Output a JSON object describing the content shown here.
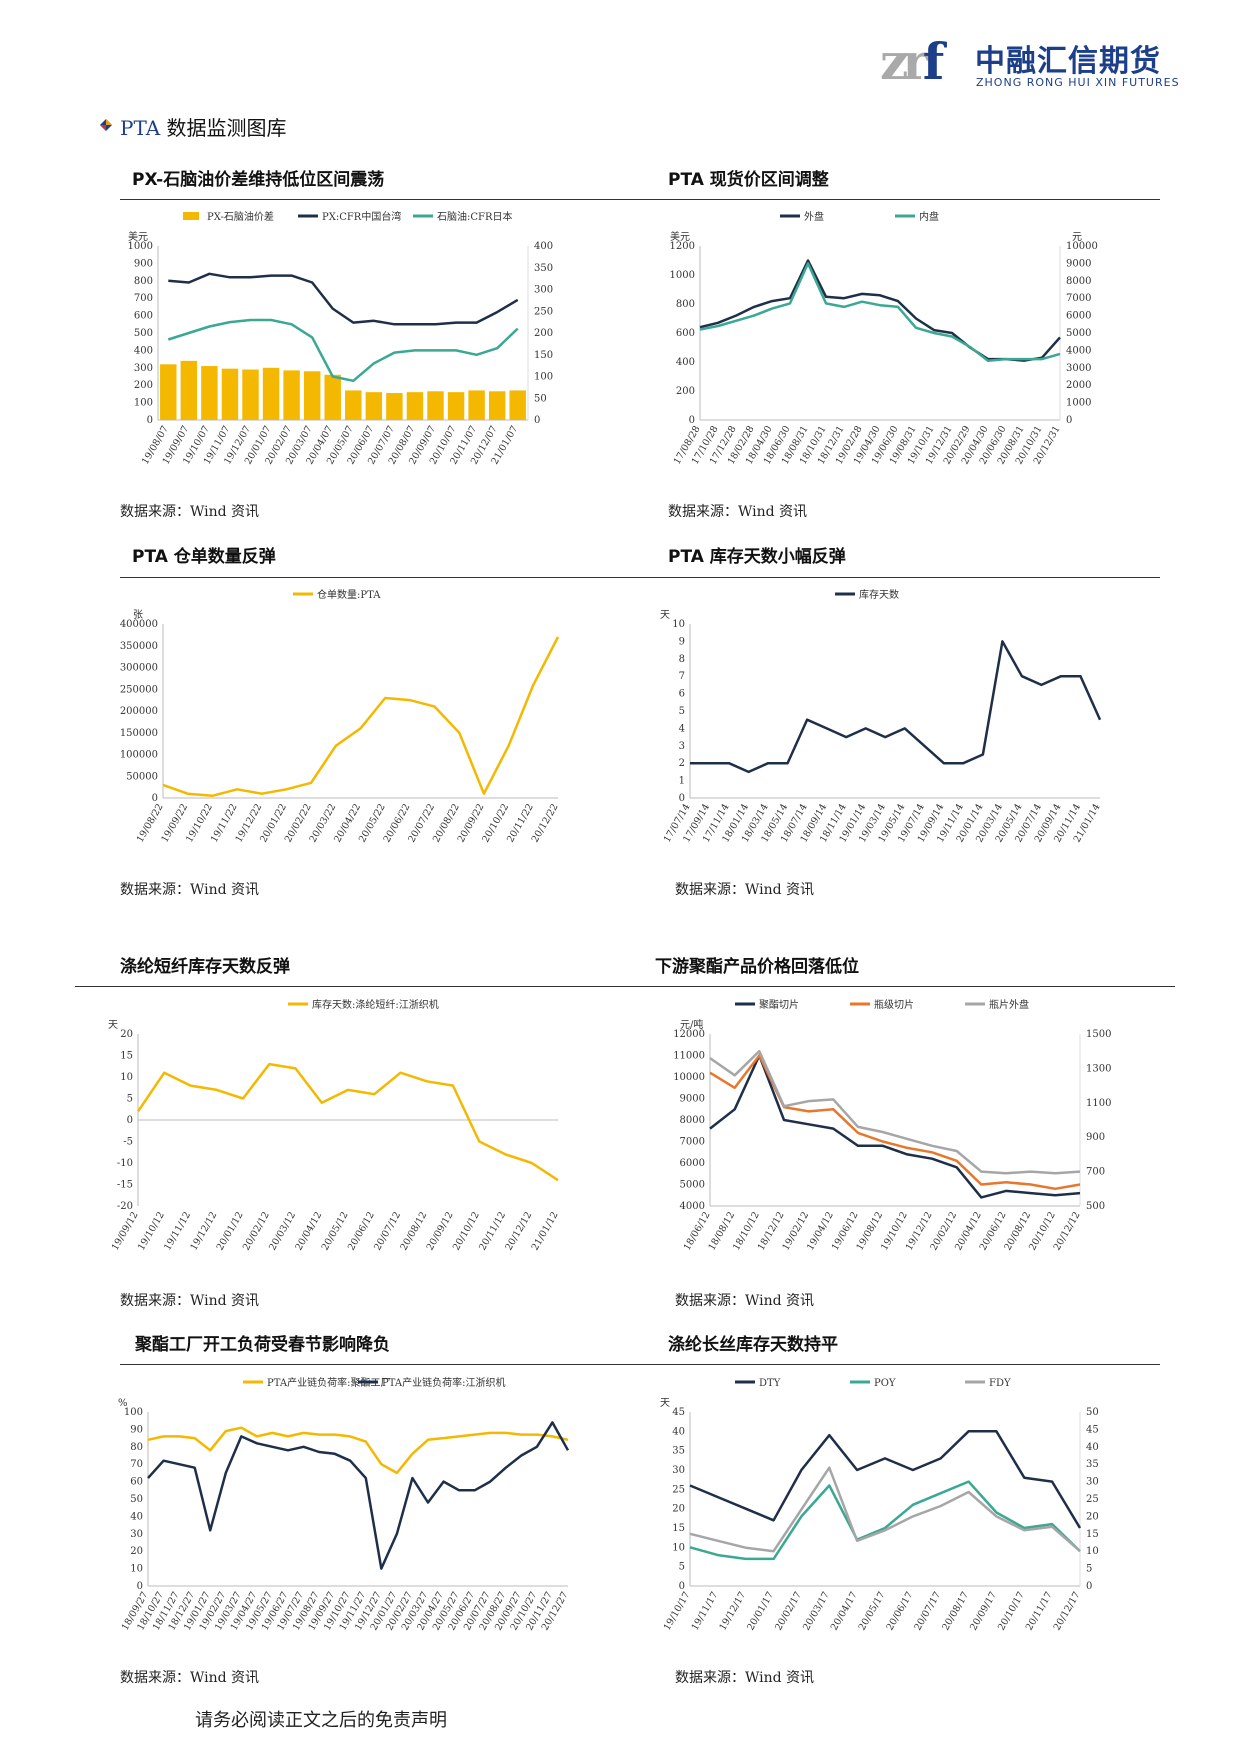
{
  "header": {
    "logo_mark": "zrf",
    "logo_cn": "中融汇信期货",
    "logo_en": "ZHONG RONG HUI XIN FUTURES"
  },
  "section": {
    "prefix": "PTA",
    "title": " 数据监测图库"
  },
  "footer": "请务必阅读正文之后的免责声明",
  "charts": [
    {
      "title": "PX-石脑油价差维持低位区间震荡",
      "source": "数据来源：Wind 资讯"
    },
    {
      "title": "PTA 现货价区间调整",
      "source": "数据来源：Wind 资讯"
    },
    {
      "title": "PTA 仓单数量反弹",
      "source": "数据来源：Wind 资讯"
    },
    {
      "title": "PTA 库存天数小幅反弹",
      "source": "数据来源：Wind 资讯"
    },
    {
      "title": "涤纶短纤库存天数反弹",
      "source": "数据来源：Wind 资讯"
    },
    {
      "title": "下游聚酯产品价格回落低位",
      "source": "数据来源：Wind 资讯"
    },
    {
      "title": "聚酯工厂开工负荷受春节影响降负",
      "source": "数据来源：Wind 资讯"
    },
    {
      "title": "涤纶长丝库存天数持平",
      "source": "数据来源：Wind 资讯"
    }
  ],
  "chart_data": [
    {
      "type": "bar+line",
      "unit_left": "美元",
      "ylim_left": [
        0,
        1000
      ],
      "yticks_left": [
        0,
        100,
        200,
        300,
        400,
        500,
        600,
        700,
        800,
        900,
        1000
      ],
      "ylim_right": [
        0,
        400
      ],
      "yticks_right": [
        0,
        50,
        100,
        150,
        200,
        250,
        300,
        350,
        400
      ],
      "categories": [
        "19/08/07",
        "19/09/07",
        "19/10/07",
        "19/11/07",
        "19/12/07",
        "20/01/07",
        "20/02/07",
        "20/03/07",
        "20/04/07",
        "20/05/07",
        "20/06/07",
        "20/07/07",
        "20/08/07",
        "20/09/07",
        "20/10/07",
        "20/11/07",
        "20/12/07",
        "21/01/07"
      ],
      "series": [
        {
          "name": "PX-石脑油价差",
          "axis": "left",
          "kind": "bar",
          "color": "#f5b800",
          "values": [
            320,
            340,
            310,
            295,
            290,
            300,
            285,
            280,
            260,
            170,
            160,
            155,
            160,
            165,
            160,
            170,
            165,
            170
          ]
        },
        {
          "name": "PX:CFR中国台湾",
          "axis": "left",
          "kind": "line",
          "color": "#1f2f4a",
          "values": [
            800,
            790,
            840,
            820,
            820,
            830,
            830,
            790,
            640,
            560,
            570,
            550,
            550,
            550,
            560,
            560,
            620,
            690
          ]
        },
        {
          "name": "石脑油:CFR日本",
          "axis": "right",
          "kind": "line",
          "color": "#3aa893",
          "values": [
            185,
            200,
            215,
            225,
            230,
            230,
            220,
            190,
            100,
            90,
            130,
            155,
            160,
            160,
            160,
            150,
            165,
            210
          ]
        }
      ]
    },
    {
      "type": "line",
      "unit_left": "美元",
      "unit_right": "元",
      "ylim_left": [
        0,
        1200
      ],
      "yticks_left": [
        0,
        200,
        400,
        600,
        800,
        1000,
        1200
      ],
      "ylim_right": [
        0,
        10000
      ],
      "yticks_right": [
        0,
        1000,
        2000,
        3000,
        4000,
        5000,
        6000,
        7000,
        8000,
        9000,
        10000
      ],
      "categories": [
        "17/08/28",
        "17/10/28",
        "17/12/28",
        "18/02/28",
        "18/04/30",
        "18/06/30",
        "18/08/31",
        "18/10/31",
        "18/12/31",
        "19/02/28",
        "19/04/30",
        "19/06/30",
        "19/08/31",
        "19/10/31",
        "19/12/31",
        "20/02/29",
        "20/04/30",
        "20/06/30",
        "20/08/31",
        "20/10/31",
        "20/12/31"
      ],
      "series": [
        {
          "name": "外盘",
          "axis": "left",
          "color": "#1f2f4a",
          "values": [
            640,
            670,
            720,
            780,
            820,
            840,
            1100,
            850,
            840,
            870,
            860,
            820,
            700,
            620,
            600,
            500,
            420,
            420,
            410,
            430,
            570
          ]
        },
        {
          "name": "内盘",
          "axis": "right",
          "color": "#3aa893",
          "values": [
            5200,
            5400,
            5700,
            6000,
            6400,
            6700,
            9000,
            6700,
            6500,
            6800,
            6600,
            6500,
            5300,
            5000,
            4800,
            4200,
            3400,
            3500,
            3500,
            3500,
            3800
          ]
        }
      ]
    },
    {
      "type": "line",
      "unit_left": "张",
      "ylim_left": [
        0,
        400000
      ],
      "yticks_left": [
        0,
        50000,
        100000,
        150000,
        200000,
        250000,
        300000,
        350000,
        400000
      ],
      "categories": [
        "19/08/22",
        "19/09/22",
        "19/10/22",
        "19/11/22",
        "19/12/22",
        "20/01/22",
        "20/02/22",
        "20/03/22",
        "20/04/22",
        "20/05/22",
        "20/06/22",
        "20/07/22",
        "20/08/22",
        "20/09/22",
        "20/10/22",
        "20/11/22",
        "20/12/22"
      ],
      "series": [
        {
          "name": "仓单数量:PTA",
          "color": "#f5b800",
          "values": [
            30000,
            10000,
            5000,
            20000,
            10000,
            20000,
            35000,
            120000,
            160000,
            230000,
            225000,
            210000,
            150000,
            10000,
            120000,
            260000,
            370000
          ]
        }
      ]
    },
    {
      "type": "line",
      "unit_left": "天",
      "ylim_left": [
        0,
        10
      ],
      "yticks_left": [
        0,
        1,
        2,
        3,
        4,
        5,
        6,
        7,
        8,
        9,
        10
      ],
      "categories": [
        "17/07/14",
        "17/09/14",
        "17/11/14",
        "18/01/14",
        "18/03/14",
        "18/05/14",
        "18/07/14",
        "18/09/14",
        "18/11/14",
        "19/01/14",
        "19/03/14",
        "19/05/14",
        "19/07/14",
        "19/09/14",
        "19/11/14",
        "20/01/14",
        "20/03/14",
        "20/05/14",
        "20/07/14",
        "20/09/14",
        "20/11/14",
        "21/01/14"
      ],
      "series": [
        {
          "name": "库存天数",
          "color": "#1f2f4a",
          "values": [
            2,
            2,
            2,
            1.5,
            2,
            2,
            4.5,
            4,
            3.5,
            4,
            3.5,
            4,
            3,
            2,
            2,
            2.5,
            9,
            7,
            6.5,
            7,
            7,
            4.5
          ]
        }
      ]
    },
    {
      "type": "line",
      "unit_left": "天",
      "ylim_left": [
        -20,
        20
      ],
      "yticks_left": [
        -20,
        -15,
        -10,
        -5,
        0,
        5,
        10,
        15,
        20
      ],
      "categories": [
        "19/09/12",
        "19/10/12",
        "19/11/12",
        "19/12/12",
        "20/01/12",
        "20/02/12",
        "20/03/12",
        "20/04/12",
        "20/05/12",
        "20/06/12",
        "20/07/12",
        "20/08/12",
        "20/09/12",
        "20/10/12",
        "20/11/12",
        "20/12/12",
        "21/01/12"
      ],
      "series": [
        {
          "name": "库存天数:涤纶短纤:江浙织机",
          "color": "#f5b800",
          "values": [
            2,
            11,
            8,
            7,
            5,
            13,
            12,
            4,
            7,
            6,
            11,
            9,
            8,
            -5,
            -8,
            -10,
            -14
          ]
        }
      ]
    },
    {
      "type": "line",
      "unit_left": "元/吨",
      "ylim_left": [
        4000,
        12000
      ],
      "yticks_left": [
        4000,
        5000,
        6000,
        7000,
        8000,
        9000,
        10000,
        11000,
        12000
      ],
      "ylim_right": [
        500,
        1500
      ],
      "yticks_right": [
        500,
        700,
        900,
        1100,
        1300,
        1500
      ],
      "categories": [
        "18/06/12",
        "18/08/12",
        "18/10/12",
        "18/12/12",
        "19/02/12",
        "19/04/12",
        "19/06/12",
        "19/08/12",
        "19/10/12",
        "19/12/12",
        "20/02/12",
        "20/04/12",
        "20/06/12",
        "20/08/12",
        "20/10/12",
        "20/12/12"
      ],
      "series": [
        {
          "name": "聚酯切片",
          "axis": "left",
          "color": "#1f2f4a",
          "values": [
            7600,
            8500,
            11000,
            8000,
            7800,
            7600,
            6800,
            6800,
            6400,
            6200,
            5800,
            4400,
            4700,
            4600,
            4500,
            4600
          ]
        },
        {
          "name": "瓶级切片",
          "axis": "left",
          "color": "#e8762b",
          "values": [
            10200,
            9500,
            11000,
            8600,
            8400,
            8500,
            7400,
            7000,
            6700,
            6500,
            6100,
            5000,
            5100,
            5000,
            4800,
            5000
          ]
        },
        {
          "name": "瓶片外盘",
          "axis": "right",
          "color": "#a6a6a6",
          "values": [
            1360,
            1260,
            1400,
            1080,
            1110,
            1120,
            960,
            930,
            890,
            850,
            820,
            700,
            690,
            700,
            690,
            700
          ]
        }
      ]
    },
    {
      "type": "line",
      "unit_left": "%",
      "ylim_left": [
        0,
        100
      ],
      "yticks_left": [
        0,
        10,
        20,
        30,
        40,
        50,
        60,
        70,
        80,
        90,
        100
      ],
      "categories": [
        "18/09/27",
        "18/10/27",
        "18/11/27",
        "18/12/27",
        "19/01/27",
        "19/02/27",
        "19/03/27",
        "19/04/27",
        "19/05/27",
        "19/06/27",
        "19/07/27",
        "19/08/27",
        "19/09/27",
        "19/10/27",
        "19/11/27",
        "19/12/27",
        "20/01/27",
        "20/02/27",
        "20/03/27",
        "20/04/27",
        "20/05/27",
        "20/06/27",
        "20/07/27",
        "20/08/27",
        "20/09/27",
        "20/10/27",
        "20/11/27",
        "20/12/27"
      ],
      "series": [
        {
          "name": "PTA产业链负荷率:聚酯工厂",
          "color": "#f5b800",
          "values": [
            84,
            86,
            86,
            85,
            78,
            89,
            91,
            86,
            88,
            86,
            88,
            87,
            87,
            86,
            83,
            70,
            65,
            76,
            84,
            85,
            86,
            87,
            88,
            88,
            87,
            87,
            86,
            84
          ]
        },
        {
          "name": "PTA产业链负荷率:江浙织机",
          "color": "#1f2f4a",
          "values": [
            62,
            72,
            70,
            68,
            32,
            65,
            86,
            82,
            80,
            78,
            80,
            77,
            76,
            72,
            62,
            10,
            30,
            62,
            48,
            60,
            55,
            55,
            60,
            68,
            75,
            80,
            94,
            78
          ]
        }
      ]
    },
    {
      "type": "line",
      "unit_left": "天",
      "ylim_left": [
        0,
        45
      ],
      "yticks_left": [
        0,
        5,
        10,
        15,
        20,
        25,
        30,
        35,
        40,
        45
      ],
      "ylim_right": [
        0,
        50
      ],
      "yticks_right": [
        0,
        5,
        10,
        15,
        20,
        25,
        30,
        35,
        40,
        45,
        50
      ],
      "categories": [
        "19/10/17",
        "19/11/17",
        "19/12/17",
        "20/01/17",
        "20/02/17",
        "20/03/17",
        "20/04/17",
        "20/05/17",
        "20/06/17",
        "20/07/17",
        "20/08/17",
        "20/09/17",
        "20/10/17",
        "20/11/17",
        "20/12/17"
      ],
      "series": [
        {
          "name": "DTY",
          "axis": "left",
          "color": "#1f2f4a",
          "values": [
            26,
            23,
            20,
            17,
            30,
            39,
            30,
            33,
            30,
            33,
            40,
            40,
            28,
            27,
            15
          ]
        },
        {
          "name": "POY",
          "axis": "left",
          "color": "#3aa893",
          "values": [
            10,
            8,
            7,
            7,
            18,
            26,
            12,
            15,
            21,
            24,
            27,
            19,
            15,
            16,
            9
          ]
        },
        {
          "name": "FDY",
          "axis": "right",
          "color": "#a6a6a6",
          "values": [
            15,
            13,
            11,
            10,
            22,
            34,
            13,
            16,
            20,
            23,
            27,
            20,
            16,
            17,
            10
          ]
        }
      ]
    }
  ]
}
